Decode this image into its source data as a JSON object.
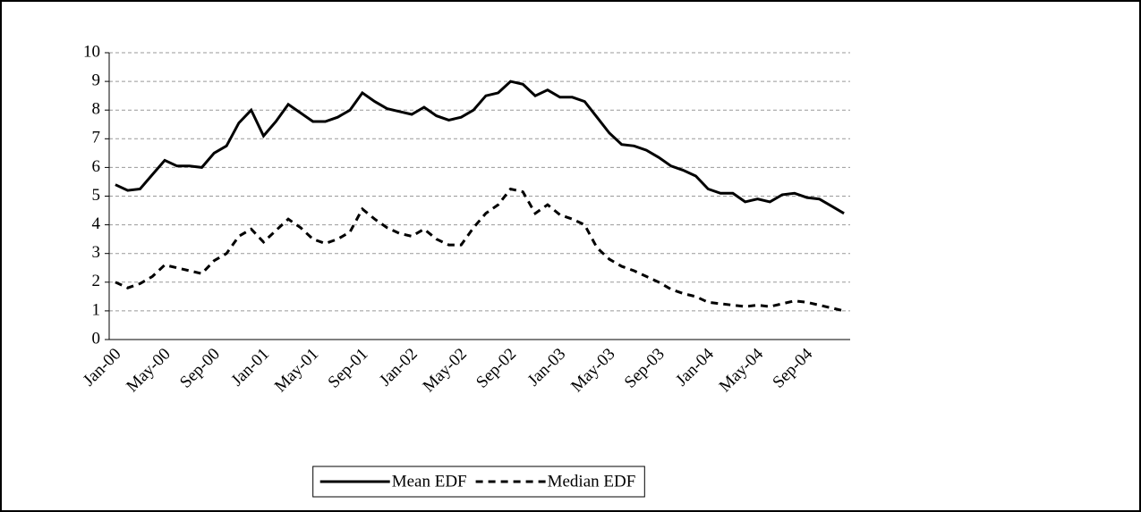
{
  "chart_data": {
    "type": "line",
    "categories": [
      "Jan-00",
      null,
      null,
      null,
      "May-00",
      null,
      null,
      null,
      "Sep-00",
      null,
      null,
      null,
      "Jan-01",
      null,
      null,
      null,
      "May-01",
      null,
      null,
      null,
      "Sep-01",
      null,
      null,
      null,
      "Jan-02",
      null,
      null,
      null,
      "May-02",
      null,
      null,
      null,
      "Sep-02",
      null,
      null,
      null,
      "Jan-03",
      null,
      null,
      null,
      "May-03",
      null,
      null,
      null,
      "Sep-03",
      null,
      null,
      null,
      "Jan-04",
      null,
      null,
      null,
      "May-04",
      null,
      null,
      null,
      "Sep-04",
      null,
      null,
      null
    ],
    "series": [
      {
        "name": "Mean EDF",
        "color": "#000000",
        "dash": "solid",
        "values": [
          5.4,
          5.2,
          5.25,
          5.75,
          6.25,
          6.05,
          6.05,
          6.0,
          6.5,
          6.75,
          7.55,
          8.0,
          7.1,
          7.6,
          8.2,
          7.9,
          7.6,
          7.6,
          7.75,
          8.0,
          8.6,
          8.3,
          8.05,
          7.95,
          7.85,
          8.1,
          7.8,
          7.65,
          7.75,
          8.0,
          8.5,
          8.6,
          9.0,
          8.9,
          8.5,
          8.7,
          8.45,
          8.45,
          8.3,
          7.75,
          7.2,
          6.8,
          6.75,
          6.6,
          6.35,
          6.05,
          5.9,
          5.7,
          5.25,
          5.1,
          5.1,
          4.8,
          4.9,
          4.8,
          5.05,
          5.1,
          4.95,
          4.9,
          4.65,
          4.4
        ]
      },
      {
        "name": "Median EDF",
        "color": "#000000",
        "dash": "dashed",
        "values": [
          2.0,
          1.8,
          1.95,
          2.2,
          2.6,
          2.5,
          2.4,
          2.3,
          2.75,
          3.0,
          3.6,
          3.85,
          3.4,
          3.8,
          4.2,
          3.9,
          3.5,
          3.35,
          3.5,
          3.75,
          4.55,
          4.2,
          3.9,
          3.7,
          3.6,
          3.85,
          3.5,
          3.3,
          3.3,
          3.9,
          4.4,
          4.7,
          5.25,
          5.15,
          4.4,
          4.7,
          4.35,
          4.2,
          4.0,
          3.2,
          2.8,
          2.55,
          2.4,
          2.2,
          2.0,
          1.75,
          1.6,
          1.5,
          1.3,
          1.25,
          1.2,
          1.15,
          1.2,
          1.15,
          1.25,
          1.35,
          1.3,
          1.2,
          1.1,
          1.0
        ]
      }
    ],
    "ylim": [
      0,
      10
    ],
    "yticks": [
      0,
      1,
      2,
      3,
      4,
      5,
      6,
      7,
      8,
      9,
      10
    ],
    "grid": true,
    "legend": "bottom"
  }
}
